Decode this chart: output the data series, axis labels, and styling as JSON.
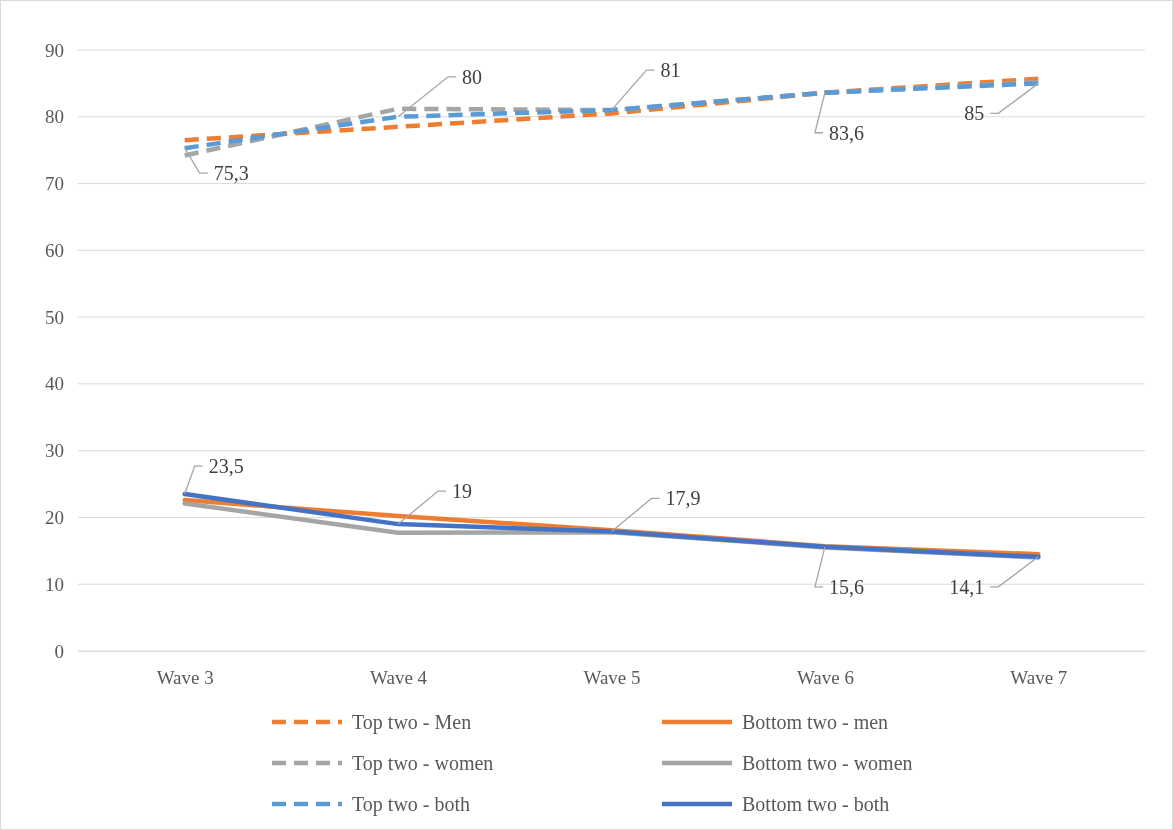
{
  "chart_data": {
    "type": "line",
    "categories": [
      "Wave 3",
      "Wave 4",
      "Wave 5",
      "Wave 6",
      "Wave 7"
    ],
    "ylim": [
      0,
      90
    ],
    "yticks": [
      0,
      10,
      20,
      30,
      40,
      50,
      60,
      70,
      80,
      90
    ],
    "grid": "y",
    "legend": "bottom",
    "series": [
      {
        "name": "Top two - Men",
        "color": "#ed7d31",
        "line_style": "dashed",
        "values": [
          76.5,
          78.5,
          80.5,
          83.6,
          85.7
        ]
      },
      {
        "name": "Bottom two - men",
        "color": "#ed7d31",
        "line_style": "solid",
        "values": [
          22.6,
          20.2,
          18.1,
          15.7,
          14.5
        ]
      },
      {
        "name": "Top two - women",
        "color": "#a5a5a5",
        "line_style": "dashed",
        "values": [
          74.2,
          81.2,
          81,
          83.6,
          85.2
        ]
      },
      {
        "name": "Bottom two - women",
        "color": "#a5a5a5",
        "line_style": "solid",
        "values": [
          22.1,
          17.7,
          17.8,
          15.5,
          14.0
        ]
      },
      {
        "name": "Top two - both",
        "color": "#5b9bd5",
        "line_style": "dashed",
        "values": [
          75.3,
          80,
          81,
          83.6,
          85
        ],
        "value_labels": [
          "75,3",
          "80",
          "81",
          "83,6",
          "85"
        ]
      },
      {
        "name": "Bottom two - both",
        "color": "#4472c4",
        "line_style": "solid",
        "values": [
          23.5,
          19,
          17.9,
          15.6,
          14.1
        ],
        "value_labels": [
          "23,5",
          "19",
          "17,9",
          "15,6",
          "14,1"
        ]
      }
    ]
  }
}
